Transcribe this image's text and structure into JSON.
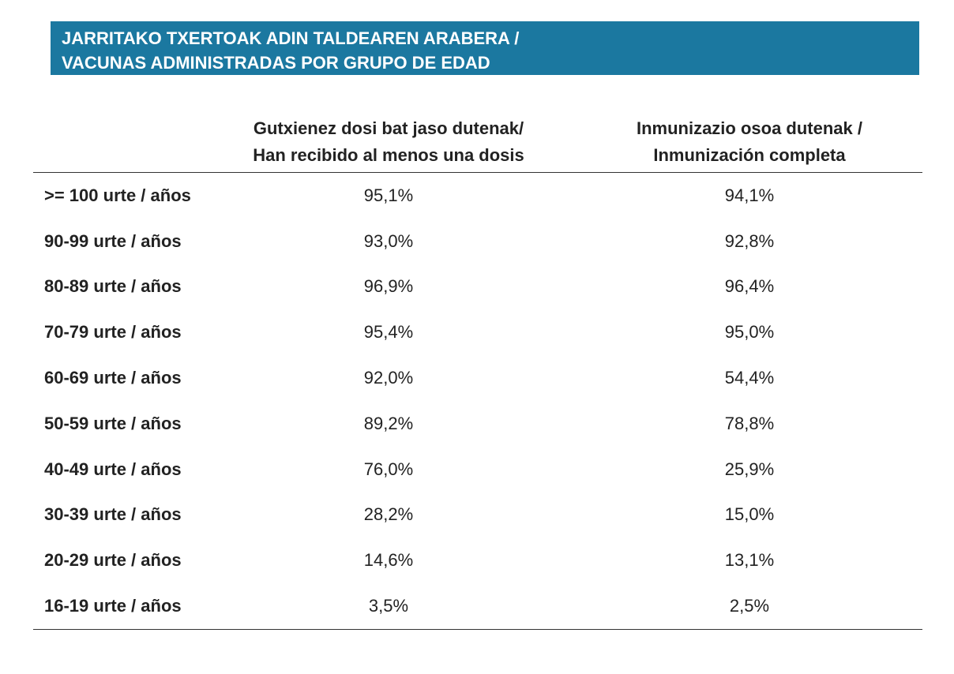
{
  "title": {
    "line1": "JARRITAKO TXERTOAK ADIN TALDEAREN ARABERA /",
    "line2": "VACUNAS ADMINISTRADAS POR GRUPO DE EDAD"
  },
  "colors": {
    "banner_bg": "#1b78a0",
    "banner_text": "#ffffff"
  },
  "table": {
    "headers": {
      "age": "",
      "one_dose": {
        "line1": "Gutxienez dosi bat jaso dutenak/",
        "line2": "Han recibido al menos una dosis"
      },
      "full": {
        "line1": "Inmunizazio osoa dutenak /",
        "line2": "Inmunización completa"
      }
    },
    "rows": [
      {
        "age": ">= 100 urte / años",
        "one_dose": "95,1%",
        "full": "94,1%"
      },
      {
        "age": "90-99 urte / años",
        "one_dose": "93,0%",
        "full": "92,8%"
      },
      {
        "age": "80-89 urte / años",
        "one_dose": "96,9%",
        "full": "96,4%"
      },
      {
        "age": "70-79 urte / años",
        "one_dose": "95,4%",
        "full": "95,0%"
      },
      {
        "age": "60-69 urte / años",
        "one_dose": "92,0%",
        "full": "54,4%"
      },
      {
        "age": "50-59 urte / años",
        "one_dose": "89,2%",
        "full": "78,8%"
      },
      {
        "age": "40-49 urte / años",
        "one_dose": "76,0%",
        "full": "25,9%"
      },
      {
        "age": "30-39 urte / años",
        "one_dose": "28,2%",
        "full": "15,0%"
      },
      {
        "age": "20-29 urte / años",
        "one_dose": "14,6%",
        "full": "13,1%"
      },
      {
        "age": "16-19 urte / años",
        "one_dose": "3,5%",
        "full": "2,5%"
      }
    ]
  }
}
